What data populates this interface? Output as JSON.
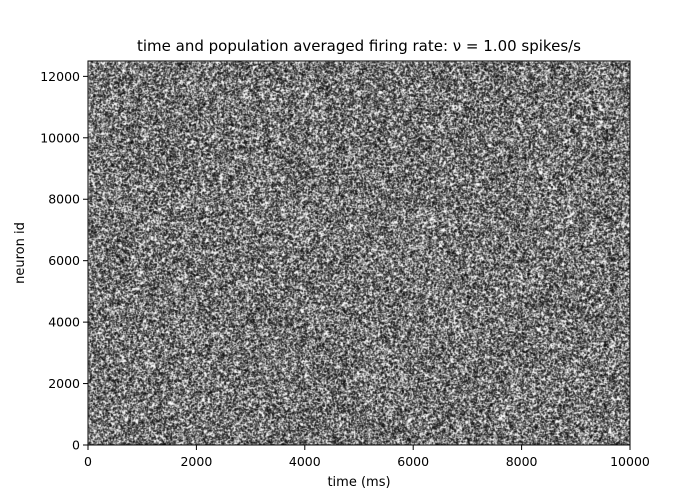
{
  "chart_data": {
    "type": "scatter",
    "title": "time and population averaged firing rate: ν = 1.00 spikes/s",
    "xlabel": "time (ms)",
    "ylabel": "neuron id",
    "xlim": [
      0,
      10000
    ],
    "ylim": [
      0,
      12500
    ],
    "xticks": [
      0,
      2000,
      4000,
      6000,
      8000,
      10000
    ],
    "yticks": [
      0,
      2000,
      4000,
      6000,
      8000,
      10000,
      12000
    ],
    "grid": false,
    "marker_color": "#000000",
    "firing_rate_hz": 1.0,
    "population_size": 12500,
    "duration_ms": 10000
  }
}
